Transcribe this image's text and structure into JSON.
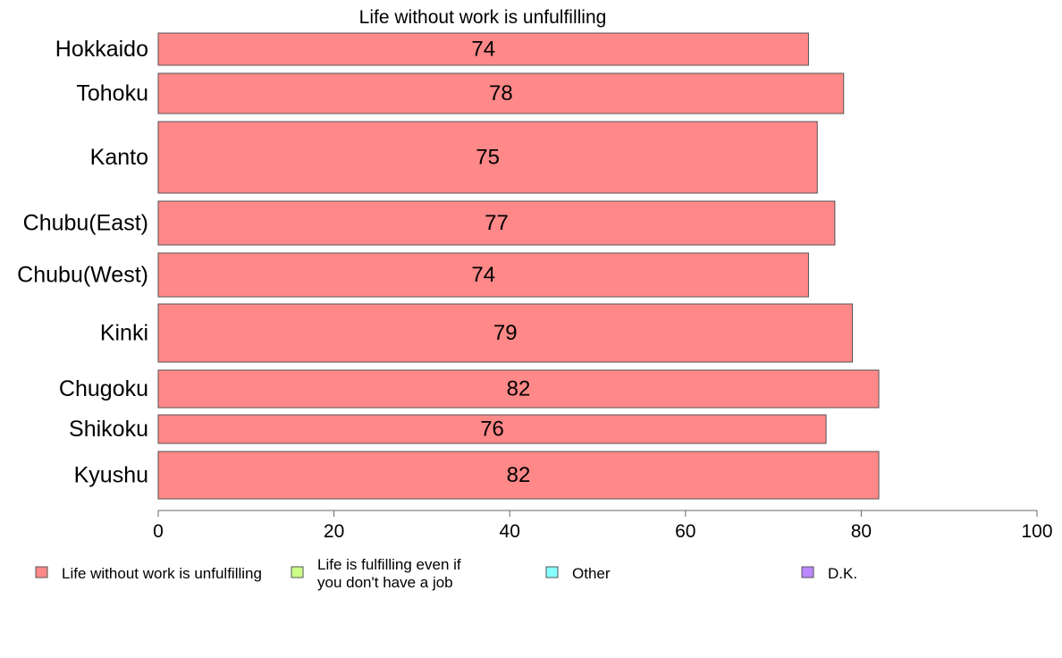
{
  "chart_data": {
    "type": "bar",
    "orientation": "horizontal",
    "title": "Life without work is unfulfilling",
    "categories": [
      "Hokkaido",
      "Tohoku",
      "Kanto",
      "Chubu(East)",
      "Chubu(West)",
      "Kinki",
      "Chugoku",
      "Shikoku",
      "Kyushu"
    ],
    "values": [
      74,
      78,
      75,
      77,
      74,
      79,
      82,
      76,
      82
    ],
    "xlim": [
      0,
      100
    ],
    "xticks": [
      "0",
      "20",
      "40",
      "60",
      "80",
      "100"
    ],
    "xlabel": "",
    "ylabel": "",
    "grid": false,
    "legend_position": "bottom",
    "legend": [
      {
        "label_lines": [
          "Life without work is unfulfilling"
        ],
        "color": "#ff8888"
      },
      {
        "label_lines": [
          "Life is fulfilling even if",
          "you don't have a job"
        ],
        "color": "#ccff88"
      },
      {
        "label_lines": [
          "Other"
        ],
        "color": "#88ffff"
      },
      {
        "label_lines": [
          "D.K."
        ],
        "color": "#bb88ff"
      }
    ],
    "bar_color": "#ff8888",
    "bar_border_color": "#555555"
  }
}
